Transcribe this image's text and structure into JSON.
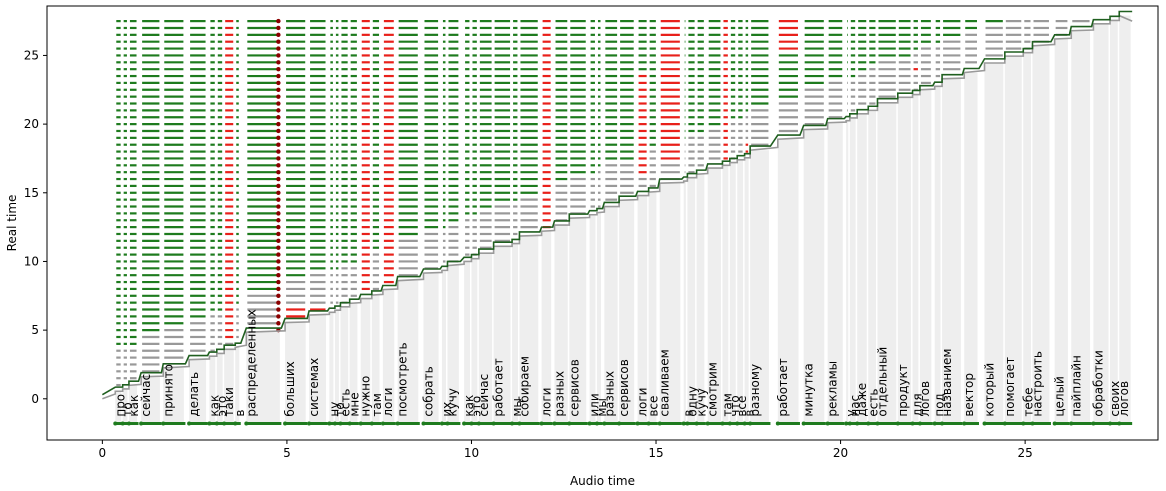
{
  "chart_data": {
    "type": "line",
    "xlabel": "Audio time",
    "ylabel": "Real time",
    "xlim": [
      -1.5,
      28.6
    ],
    "ylim": [
      -3.0,
      28.6
    ],
    "xticks": [
      0,
      5,
      10,
      15,
      20,
      25
    ],
    "yticks": [
      0,
      5,
      10,
      15,
      20,
      25
    ],
    "grid": false,
    "colors": {
      "accepted": "#1e7b1e",
      "rejected": "#e8201a",
      "pending": "#999999",
      "band": "#eeeeee",
      "marker": "#8b0000",
      "step_line": "#1f5f1f"
    },
    "words": [
      {
        "t": "про",
        "s": 0.35,
        "e": 0.55
      },
      {
        "t": "то",
        "s": 0.55,
        "e": 0.72
      },
      {
        "t": "как",
        "s": 0.72,
        "e": 0.98
      },
      {
        "t": "сейчас",
        "s": 1.05,
        "e": 1.6
      },
      {
        "t": "принято",
        "s": 1.65,
        "e": 2.25
      },
      {
        "t": "делать",
        "s": 2.35,
        "e": 2.85
      },
      {
        "t": "как",
        "s": 2.9,
        "e": 3.1
      },
      {
        "t": "это",
        "s": 3.1,
        "e": 3.3
      },
      {
        "t": "таки",
        "s": 3.3,
        "e": 3.6
      },
      {
        "t": "в",
        "s": 3.6,
        "e": 3.75
      },
      {
        "t": "распределенных",
        "s": 3.9,
        "e": 4.85
      },
      {
        "t": "больших",
        "s": 4.95,
        "e": 5.55
      },
      {
        "t": "системах",
        "s": 5.6,
        "e": 6.1
      },
      {
        "t": "ну",
        "s": 6.15,
        "e": 6.3
      },
      {
        "t": "то",
        "s": 6.3,
        "e": 6.45
      },
      {
        "t": "есть",
        "s": 6.45,
        "e": 6.7
      },
      {
        "t": "мне",
        "s": 6.7,
        "e": 6.95
      },
      {
        "t": "нужно",
        "s": 7.0,
        "e": 7.3
      },
      {
        "t": "там",
        "s": 7.3,
        "e": 7.55
      },
      {
        "t": "логи",
        "s": 7.6,
        "e": 7.95
      },
      {
        "t": "посмотреть",
        "s": 8.0,
        "e": 8.6
      },
      {
        "t": "собрать",
        "s": 8.7,
        "e": 9.15
      },
      {
        "t": "их",
        "s": 9.2,
        "e": 9.35
      },
      {
        "t": "кучу",
        "s": 9.35,
        "e": 9.7
      },
      {
        "t": "как",
        "s": 9.8,
        "e": 10.0
      },
      {
        "t": "это",
        "s": 10.0,
        "e": 10.2
      },
      {
        "t": "сейчас",
        "s": 10.2,
        "e": 10.6
      },
      {
        "t": "работает",
        "s": 10.6,
        "e": 11.1
      },
      {
        "t": "мы",
        "s": 11.1,
        "e": 11.3
      },
      {
        "t": "собираем",
        "s": 11.3,
        "e": 11.85
      },
      {
        "t": "логи",
        "s": 11.9,
        "e": 12.2
      },
      {
        "t": "разных",
        "s": 12.25,
        "e": 12.65
      },
      {
        "t": "сервисов",
        "s": 12.65,
        "e": 13.15
      },
      {
        "t": "или",
        "s": 13.2,
        "e": 13.4
      },
      {
        "t": "мы",
        "s": 13.4,
        "e": 13.55
      },
      {
        "t": "разных",
        "s": 13.6,
        "e": 14.0
      },
      {
        "t": "сервисов",
        "s": 14.0,
        "e": 14.45
      },
      {
        "t": "логи",
        "s": 14.5,
        "e": 14.8
      },
      {
        "t": "все",
        "s": 14.8,
        "e": 15.05
      },
      {
        "t": "сваливаем",
        "s": 15.1,
        "e": 15.7
      },
      {
        "t": "в",
        "s": 15.75,
        "e": 15.85
      },
      {
        "t": "одну",
        "s": 15.85,
        "e": 16.1
      },
      {
        "t": "кучу",
        "s": 16.1,
        "e": 16.35
      },
      {
        "t": "смотрим",
        "s": 16.4,
        "e": 16.8
      },
      {
        "t": "там",
        "s": 16.8,
        "e": 17.0
      },
      {
        "t": "что",
        "s": 17.0,
        "e": 17.2
      },
      {
        "t": "все",
        "s": 17.2,
        "e": 17.4
      },
      {
        "t": "в",
        "s": 17.4,
        "e": 17.55
      },
      {
        "t": "разному",
        "s": 17.55,
        "e": 18.1
      },
      {
        "t": "работает",
        "s": 18.3,
        "e": 18.9
      },
      {
        "t": "минутка",
        "s": 19.0,
        "e": 19.6
      },
      {
        "t": "рекламы",
        "s": 19.65,
        "e": 20.1
      },
      {
        "t": "у",
        "s": 20.15,
        "e": 20.25
      },
      {
        "t": "нас",
        "s": 20.25,
        "e": 20.45
      },
      {
        "t": "даже",
        "s": 20.45,
        "e": 20.75
      },
      {
        "t": "есть",
        "s": 20.75,
        "e": 21.0
      },
      {
        "t": "отдельный",
        "s": 21.0,
        "e": 21.55
      },
      {
        "t": "продукт",
        "s": 21.55,
        "e": 21.95
      },
      {
        "t": "для",
        "s": 21.95,
        "e": 22.15
      },
      {
        "t": "логов",
        "s": 22.15,
        "e": 22.5
      },
      {
        "t": "под",
        "s": 22.55,
        "e": 22.75
      },
      {
        "t": "названием",
        "s": 22.75,
        "e": 23.3
      },
      {
        "t": "вектор",
        "s": 23.35,
        "e": 23.75
      },
      {
        "t": "который",
        "s": 23.9,
        "e": 24.45
      },
      {
        "t": "помогает",
        "s": 24.45,
        "e": 24.95
      },
      {
        "t": "тебе",
        "s": 24.95,
        "e": 25.2
      },
      {
        "t": "настроить",
        "s": 25.2,
        "e": 25.7
      },
      {
        "t": "целый",
        "s": 25.8,
        "e": 26.2
      },
      {
        "t": "пайплайн",
        "s": 26.25,
        "e": 26.8
      },
      {
        "t": "обработки",
        "s": 26.85,
        "e": 27.3
      },
      {
        "t": "своих",
        "s": 27.3,
        "e": 27.55
      },
      {
        "t": "логов",
        "s": 27.55,
        "e": 27.9
      }
    ],
    "rejected_ranges": [
      {
        "word": 8,
        "from": 4.5,
        "to": 27.5
      },
      {
        "word": 11,
        "from": 5.5,
        "to": 6.5
      },
      {
        "word": 12,
        "from": 5.5,
        "to": 6.5
      },
      {
        "word": 16,
        "from": 6.0,
        "to": 6.5
      },
      {
        "word": 17,
        "from": 6.5,
        "to": 27.5
      },
      {
        "word": 19,
        "from": 8.0,
        "to": 27.5
      },
      {
        "word": 30,
        "from": 12.0,
        "to": 27.5
      },
      {
        "word": 37,
        "from": 16.5,
        "to": 23.5
      },
      {
        "word": 39,
        "from": 17.5,
        "to": 27.5
      },
      {
        "word": 44,
        "from": 17.5,
        "to": 27.5
      },
      {
        "word": 47,
        "from": 18.0,
        "to": 18.5
      },
      {
        "word": 49,
        "from": 25.5,
        "to": 27.5
      },
      {
        "word": 58,
        "from": 24.0,
        "to": 24.0
      }
    ],
    "marker_word": 10,
    "marker_from": 10.0,
    "marker_to": 27.5
  }
}
